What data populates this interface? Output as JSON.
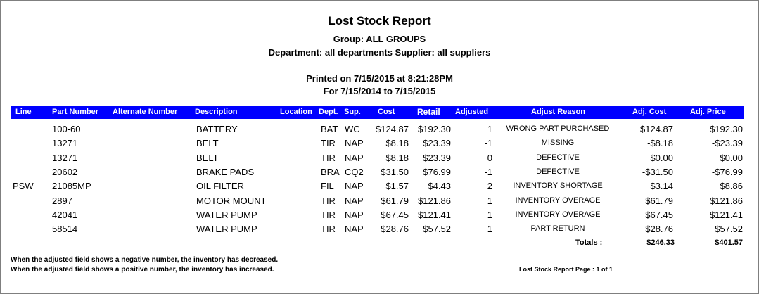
{
  "report": {
    "title": "Lost Stock Report",
    "group_line": "Group: ALL GROUPS",
    "department_line": "Department:  all departments  Supplier:  all suppliers",
    "printed_line": "Printed on 7/15/2015 at  8:21:28PM",
    "range_line": "For 7/15/2014 to 7/15/2015"
  },
  "columns": {
    "line": "Line",
    "part_number": "Part Number",
    "alternate_number": "Alternate Number",
    "description": "Description",
    "location": "Location",
    "dept": "Dept.",
    "sup": "Sup.",
    "cost": "Cost",
    "retail": "Retail",
    "adjusted": "Adjusted",
    "adjust_reason": "Adjust Reason",
    "adj_cost": "Adj. Cost",
    "adj_price": "Adj. Price"
  },
  "rows": [
    {
      "line": "",
      "part": "100-60",
      "desc": "BATTERY",
      "dept": "BAT",
      "sup": "WC",
      "cost": "$124.87",
      "retail": "$192.30",
      "adjusted": "1",
      "reason": "WRONG PART PURCHASED",
      "adj_cost": "$124.87",
      "adj_price": "$192.30"
    },
    {
      "line": "",
      "part": "13271",
      "desc": "BELT",
      "dept": "TIR",
      "sup": "NAP",
      "cost": "$8.18",
      "retail": "$23.39",
      "adjusted": "-1",
      "reason": "MISSING",
      "adj_cost": "-$8.18",
      "adj_price": "-$23.39"
    },
    {
      "line": "",
      "part": "13271",
      "desc": "BELT",
      "dept": "TIR",
      "sup": "NAP",
      "cost": "$8.18",
      "retail": "$23.39",
      "adjusted": "0",
      "reason": "DEFECTIVE",
      "adj_cost": "$0.00",
      "adj_price": "$0.00"
    },
    {
      "line": "",
      "part": "20602",
      "desc": "BRAKE PADS",
      "dept": "BRA",
      "sup": "CQ2",
      "cost": "$31.50",
      "retail": "$76.99",
      "adjusted": "-1",
      "reason": "DEFECTIVE",
      "adj_cost": "-$31.50",
      "adj_price": "-$76.99"
    },
    {
      "line": "PSW",
      "part": "21085MP",
      "desc": "OIL FILTER",
      "dept": "FIL",
      "sup": "NAP",
      "cost": "$1.57",
      "retail": "$4.43",
      "adjusted": "2",
      "reason": "INVENTORY SHORTAGE",
      "adj_cost": "$3.14",
      "adj_price": "$8.86"
    },
    {
      "line": "",
      "part": "2897",
      "desc": "MOTOR MOUNT",
      "dept": "TIR",
      "sup": "NAP",
      "cost": "$61.79",
      "retail": "$121.86",
      "adjusted": "1",
      "reason": "INVENTORY OVERAGE",
      "adj_cost": "$61.79",
      "adj_price": "$121.86"
    },
    {
      "line": "",
      "part": "42041",
      "desc": "WATER PUMP",
      "dept": "TIR",
      "sup": "NAP",
      "cost": "$67.45",
      "retail": "$121.41",
      "adjusted": "1",
      "reason": "INVENTORY OVERAGE",
      "adj_cost": "$67.45",
      "adj_price": "$121.41"
    },
    {
      "line": "",
      "part": "58514",
      "desc": "WATER PUMP",
      "dept": "TIR",
      "sup": "NAP",
      "cost": "$28.76",
      "retail": "$57.52",
      "adjusted": "1",
      "reason": "PART RETURN",
      "adj_cost": "$28.76",
      "adj_price": "$57.52"
    }
  ],
  "totals": {
    "label": "Totals :",
    "adj_cost": "$246.33",
    "adj_price": "$401.57"
  },
  "footer": {
    "note_negative": "When the adjusted field shows a negative number, the inventory has decreased.",
    "note_positive": "When the adjusted field shows a positive number, the inventory has increased.",
    "page_info": "Lost Stock Report Page : 1 of  1"
  },
  "colors": {
    "header_bg": "#0000ff",
    "header_text": "#ffffff",
    "border": "#7f7f7f"
  }
}
